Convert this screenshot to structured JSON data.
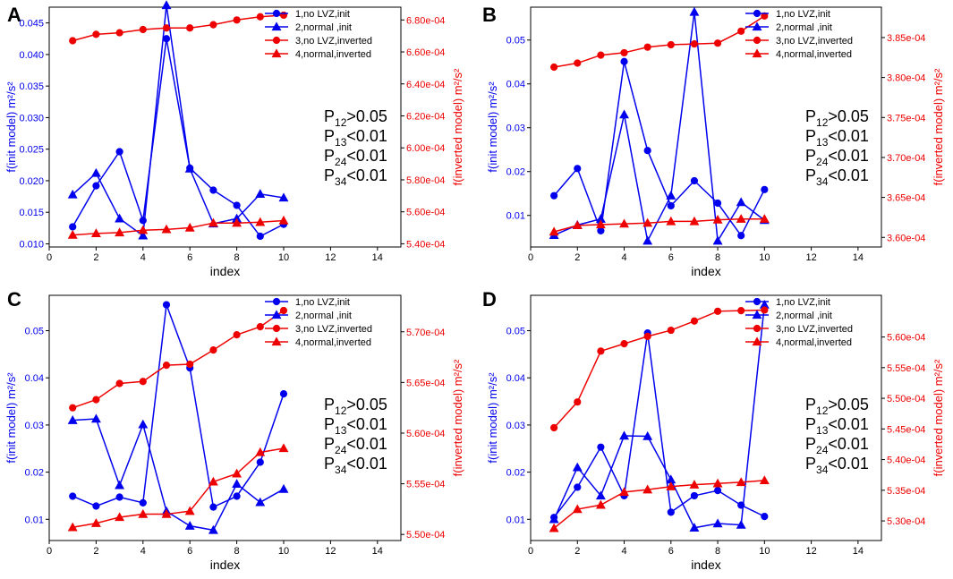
{
  "colors": {
    "blue": "#0000ee",
    "red": "#ee0000",
    "axis": "#000000"
  },
  "chart_data": [
    {
      "type": "line",
      "panel_label": "A",
      "xlabel": "index",
      "ylabel_left": "f(init model)  m²/s²",
      "ylabel_right": "f(inverted model) m²/s²",
      "xlim": [
        0,
        15
      ],
      "xticks": [
        "0",
        "2",
        "4",
        "6",
        "8",
        "10",
        "12",
        "14"
      ],
      "ylim_left": [
        0.0095,
        0.0475
      ],
      "yticks_left": [
        "0.010",
        "0.015",
        "0.020",
        "0.025",
        "0.030",
        "0.035",
        "0.040",
        "0.045"
      ],
      "ylim_right": [
        0.000538,
        0.000688
      ],
      "yticks_right": [
        "5.40e-04",
        "5.60e-04",
        "5.80e-04",
        "6.00e-04",
        "6.20e-04",
        "6.40e-04",
        "6.60e-04",
        "6.80e-04"
      ],
      "x": [
        1,
        2,
        3,
        4,
        5,
        6,
        7,
        8,
        9,
        10
      ],
      "series": [
        {
          "name": "1,no LVZ,init",
          "axis": "left",
          "marker": "circle",
          "color": "#0000ee",
          "values": [
            0.0127,
            0.0192,
            0.0246,
            0.0137,
            0.0425,
            0.022,
            0.0185,
            0.0161,
            0.0112,
            0.0131
          ]
        },
        {
          "name": "2,normal ,init",
          "axis": "left",
          "marker": "triangle",
          "color": "#0000ee",
          "values": [
            0.0178,
            0.0212,
            0.014,
            0.0113,
            0.0478,
            0.0219,
            0.0132,
            0.014,
            0.0179,
            0.0173
          ]
        },
        {
          "name": "3,no LVZ,inverted",
          "axis": "right",
          "marker": "circle",
          "color": "#ee0000",
          "values": [
            0.000667,
            0.000671,
            0.000672,
            0.000674,
            0.000675,
            0.000675,
            0.000677,
            0.00068,
            0.000682,
            0.000683
          ]
        },
        {
          "name": "4,normal,inverted",
          "axis": "right",
          "marker": "triangle",
          "color": "#ee0000",
          "values": [
            0.0005455,
            0.0005465,
            0.000547,
            0.0005485,
            0.000549,
            0.00055,
            0.000553,
            0.000553,
            0.0005535,
            0.0005545
          ]
        }
      ],
      "annotations": [
        {
          "p": "P",
          "sub": "12",
          "rest": ">0.05"
        },
        {
          "p": "P",
          "sub": "13",
          "rest": "<0.01"
        },
        {
          "p": "P",
          "sub": "24",
          "rest": "<0.01"
        },
        {
          "p": "P",
          "sub": "34",
          "rest": "<0.01"
        }
      ]
    },
    {
      "type": "line",
      "panel_label": "B",
      "xlabel": "index",
      "ylabel_left": "f(init model)  m²/s²",
      "ylabel_right": "f(inverted model) m²/s²",
      "xlim": [
        0,
        15
      ],
      "xticks": [
        "0",
        "2",
        "4",
        "6",
        "8",
        "10",
        "12",
        "14"
      ],
      "ylim_left": [
        0.0028,
        0.0575
      ],
      "yticks_left": [
        "0.01",
        "0.02",
        "0.03",
        "0.04",
        "0.05"
      ],
      "ylim_right": [
        0.0003588,
        0.0003888
      ],
      "yticks_right": [
        "3.60e-04",
        "3.65e-04",
        "3.70e-04",
        "3.75e-04",
        "3.80e-04",
        "3.85e-04"
      ],
      "x": [
        1,
        2,
        3,
        4,
        5,
        6,
        7,
        8,
        9,
        10
      ],
      "series": [
        {
          "name": "1,no LVZ,init",
          "axis": "left",
          "marker": "circle",
          "color": "#0000ee",
          "values": [
            0.0145,
            0.0207,
            0.0065,
            0.0451,
            0.0248,
            0.0122,
            0.0179,
            0.0128,
            0.0054,
            0.0159
          ]
        },
        {
          "name": "2,normal ,init",
          "axis": "left",
          "marker": "triangle",
          "color": "#0000ee",
          "values": [
            0.0055,
            0.0078,
            0.0092,
            0.033,
            0.0042,
            0.0145,
            0.0564,
            0.0042,
            0.013,
            0.0089
          ]
        },
        {
          "name": "3,no LVZ,inverted",
          "axis": "right",
          "marker": "circle",
          "color": "#ee0000",
          "values": [
            0.0003813,
            0.0003818,
            0.0003828,
            0.0003831,
            0.0003838,
            0.0003841,
            0.0003842,
            0.0003843,
            0.0003858,
            0.0003877
          ]
        },
        {
          "name": "4,normal,inverted",
          "axis": "right",
          "marker": "triangle",
          "color": "#ee0000",
          "values": [
            0.0003607,
            0.0003615,
            0.0003616,
            0.0003617,
            0.0003618,
            0.000362,
            0.000362,
            0.0003622,
            0.0003623,
            0.0003623
          ]
        }
      ],
      "annotations": [
        {
          "p": "P",
          "sub": "12",
          "rest": ">0.05"
        },
        {
          "p": "P",
          "sub": "13",
          "rest": "<0.01"
        },
        {
          "p": "P",
          "sub": "24",
          "rest": "<0.01"
        },
        {
          "p": "P",
          "sub": "34",
          "rest": "<0.01"
        }
      ]
    },
    {
      "type": "line",
      "panel_label": "C",
      "xlabel": "index",
      "ylabel_left": "f(init model)  m²/s²",
      "ylabel_right": "f(inverted model) m²/s²",
      "xlim": [
        0,
        15
      ],
      "xticks": [
        "0",
        "2",
        "4",
        "6",
        "8",
        "10",
        "12",
        "14"
      ],
      "ylim_left": [
        0.0055,
        0.0575
      ],
      "yticks_left": [
        "0.01",
        "0.02",
        "0.03",
        "0.04",
        "0.05"
      ],
      "ylim_right": [
        0.0005494,
        0.0005736
      ],
      "yticks_right": [
        "5.50e-04",
        "5.55e-04",
        "5.60e-04",
        "5.65e-04",
        "5.70e-04"
      ],
      "x": [
        1,
        2,
        3,
        4,
        5,
        6,
        7,
        8,
        9,
        10
      ],
      "series": [
        {
          "name": "1,no LVZ,init",
          "axis": "left",
          "marker": "circle",
          "color": "#0000ee",
          "values": [
            0.0149,
            0.0128,
            0.0147,
            0.0135,
            0.0555,
            0.0421,
            0.0126,
            0.0149,
            0.0221,
            0.0366
          ]
        },
        {
          "name": "2,normal ,init",
          "axis": "left",
          "marker": "triangle",
          "color": "#0000ee",
          "values": [
            0.031,
            0.0313,
            0.0172,
            0.0301,
            0.0117,
            0.0086,
            0.0077,
            0.0175,
            0.0136,
            0.0164
          ]
        },
        {
          "name": "3,no LVZ,inverted",
          "axis": "right",
          "marker": "circle",
          "color": "#ee0000",
          "values": [
            0.0005625,
            0.0005633,
            0.0005649,
            0.0005651,
            0.0005667,
            0.0005668,
            0.0005682,
            0.0005697,
            0.0005705,
            0.0005721
          ]
        },
        {
          "name": "4,normal,inverted",
          "axis": "right",
          "marker": "triangle",
          "color": "#ee0000",
          "values": [
            0.0005507,
            0.0005511,
            0.0005517,
            0.000552,
            0.000552,
            0.0005523,
            0.0005552,
            0.000556,
            0.0005581,
            0.0005585
          ]
        }
      ],
      "annotations": [
        {
          "p": "P",
          "sub": "12",
          "rest": ">0.05"
        },
        {
          "p": "P",
          "sub": "13",
          "rest": "<0.01"
        },
        {
          "p": "P",
          "sub": "24",
          "rest": "<0.01"
        },
        {
          "p": "P",
          "sub": "34",
          "rest": "<0.01"
        }
      ]
    },
    {
      "type": "line",
      "panel_label": "D",
      "xlabel": "index",
      "ylabel_left": "f(init model)  m²/s²",
      "ylabel_right": "f(inverted model) m²/s²",
      "xlim": [
        0,
        15
      ],
      "xticks": [
        "0",
        "2",
        "4",
        "6",
        "8",
        "10",
        "12",
        "14"
      ],
      "ylim_left": [
        0.0055,
        0.0575
      ],
      "yticks_left": [
        "0.01",
        "0.02",
        "0.03",
        "0.04",
        "0.05"
      ],
      "ylim_right": [
        0.0005268,
        0.0005668
      ],
      "yticks_right": [
        "5.30e-04",
        "5.35e-04",
        "5.40e-04",
        "5.45e-04",
        "5.50e-04",
        "5.55e-04",
        "5.60e-04"
      ],
      "x": [
        1,
        2,
        3,
        4,
        5,
        6,
        7,
        8,
        9,
        10
      ],
      "series": [
        {
          "name": "1,no LVZ,init",
          "axis": "left",
          "marker": "circle",
          "color": "#0000ee",
          "values": [
            0.0104,
            0.0168,
            0.0253,
            0.015,
            0.0495,
            0.0115,
            0.015,
            0.0161,
            0.013,
            0.0106
          ]
        },
        {
          "name": "2,normal ,init",
          "axis": "left",
          "marker": "triangle",
          "color": "#0000ee",
          "values": [
            0.01,
            0.021,
            0.015,
            0.0277,
            0.0276,
            0.0184,
            0.0082,
            0.0091,
            0.0088,
            0.0555
          ]
        },
        {
          "name": "3,no LVZ,inverted",
          "axis": "right",
          "marker": "circle",
          "color": "#ee0000",
          "values": [
            0.0005452,
            0.0005494,
            0.0005577,
            0.0005589,
            0.0005601,
            0.0005611,
            0.0005626,
            0.0005642,
            0.0005643,
            0.0005644
          ]
        },
        {
          "name": "4,normal,inverted",
          "axis": "right",
          "marker": "triangle",
          "color": "#ee0000",
          "values": [
            0.0005288,
            0.0005319,
            0.0005326,
            0.0005347,
            0.0005351,
            0.0005356,
            0.0005359,
            0.0005361,
            0.0005363,
            0.0005366
          ]
        }
      ],
      "annotations": [
        {
          "p": "P",
          "sub": "12",
          "rest": ">0.05"
        },
        {
          "p": "P",
          "sub": "13",
          "rest": "<0.01"
        },
        {
          "p": "P",
          "sub": "24",
          "rest": "<0.01"
        },
        {
          "p": "P",
          "sub": "34",
          "rest": "<0.01"
        }
      ]
    }
  ]
}
